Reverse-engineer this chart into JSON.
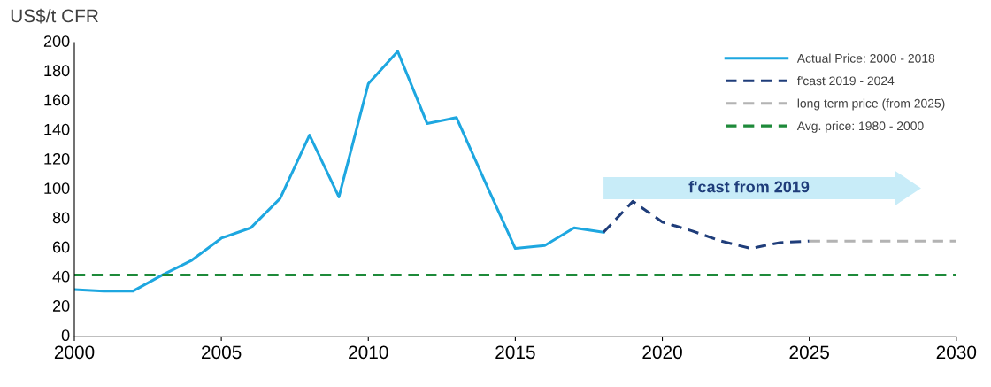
{
  "chart_data": {
    "type": "line",
    "ylabel": "US$/t CFR",
    "series": [
      {
        "name": "Actual Price: 2000 - 2018",
        "color": "#1ea7e0",
        "line_style": "solid",
        "x": [
          2000,
          2001,
          2002,
          2003,
          2004,
          2005,
          2006,
          2007,
          2008,
          2009,
          2010,
          2011,
          2012,
          2013,
          2014,
          2015,
          2016,
          2017,
          2018
        ],
        "values": [
          32,
          31,
          31,
          42,
          52,
          67,
          74,
          94,
          137,
          95,
          172,
          194,
          145,
          149,
          104,
          60,
          62,
          74,
          71
        ]
      },
      {
        "name": "f'cast 2019 - 2024",
        "color": "#1f3d7a",
        "line_style": "dashed",
        "x": [
          2018,
          2019,
          2020,
          2021,
          2022,
          2023,
          2024,
          2025
        ],
        "values": [
          71,
          92,
          78,
          72,
          65,
          60,
          64,
          65
        ]
      },
      {
        "name": "long term price (from 2025)",
        "color": "#b3b3b3",
        "line_style": "dashed",
        "x": [
          2025,
          2030
        ],
        "values": [
          65,
          65
        ]
      },
      {
        "name": "Avg. price: 1980 - 2000",
        "color": "#1e8a3a",
        "line_style": "dashed",
        "x": [
          2000,
          2030
        ],
        "values": [
          42,
          42
        ]
      }
    ],
    "xlim": [
      2000,
      2030
    ],
    "xticks": [
      2000,
      2005,
      2010,
      2015,
      2020,
      2025,
      2030
    ],
    "ylim": [
      0,
      200
    ],
    "yticks": [
      0,
      20,
      40,
      60,
      80,
      100,
      120,
      140,
      160,
      180,
      200
    ],
    "grid": false,
    "legend": "top right",
    "marker": "none",
    "annotations": [
      "f'cast from 2019"
    ]
  }
}
